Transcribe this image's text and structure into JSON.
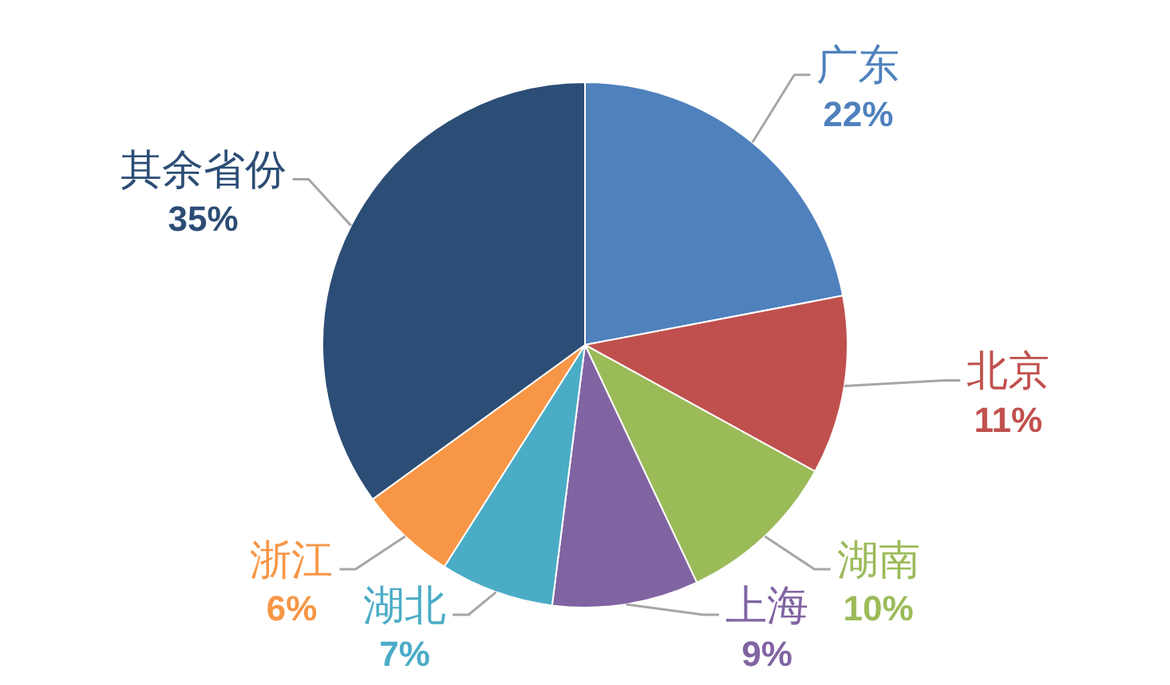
{
  "chart_data": {
    "type": "pie",
    "categories": [
      "广东",
      "北京",
      "湖南",
      "上海",
      "湖北",
      "浙江",
      "其余省份"
    ],
    "values": [
      22,
      11,
      10,
      9,
      7,
      6,
      35
    ],
    "colors": [
      "#4f81bd",
      "#c0504d",
      "#9bbb59",
      "#8064a2",
      "#4bacc6",
      "#f79646",
      "#2c4d75"
    ],
    "value_labels": [
      "22%",
      "11%",
      "10%",
      "9%",
      "7%",
      "6%",
      "35%"
    ]
  }
}
